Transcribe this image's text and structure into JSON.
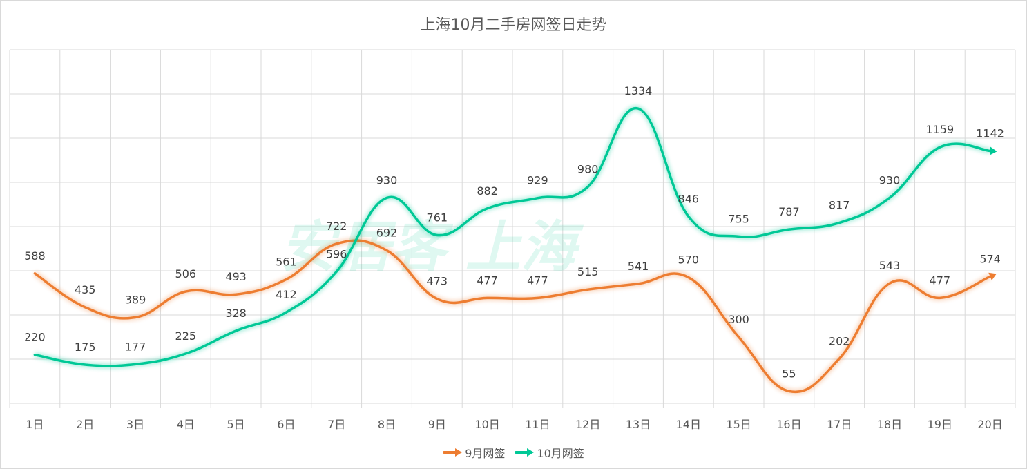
{
  "chart_data": {
    "type": "line",
    "title": "上海10月二手房网签日走势",
    "categories": [
      "1日",
      "2日",
      "3日",
      "4日",
      "5日",
      "6日",
      "7日",
      "8日",
      "9日",
      "10日",
      "11日",
      "12日",
      "13日",
      "14日",
      "15日",
      "16日",
      "17日",
      "18日",
      "19日",
      "20日"
    ],
    "series": [
      {
        "name": "9月网签",
        "color": "#ED7D31",
        "values": [
          588,
          435,
          389,
          506,
          493,
          561,
          722,
          692,
          473,
          477,
          477,
          515,
          541,
          570,
          300,
          55,
          202,
          543,
          477,
          574
        ]
      },
      {
        "name": "10月网签",
        "color": "#00C896",
        "values": [
          220,
          175,
          177,
          225,
          328,
          412,
          596,
          930,
          761,
          882,
          929,
          980,
          1334,
          846,
          755,
          787,
          817,
          930,
          1159,
          1142
        ]
      }
    ],
    "ylim": [
      0,
      1600
    ],
    "y_tick_step": 200,
    "y_tick_labels_visible": false,
    "grid": true,
    "smooth": true,
    "data_labels": true,
    "legend": "bottom",
    "watermark": "安居客 上海"
  }
}
